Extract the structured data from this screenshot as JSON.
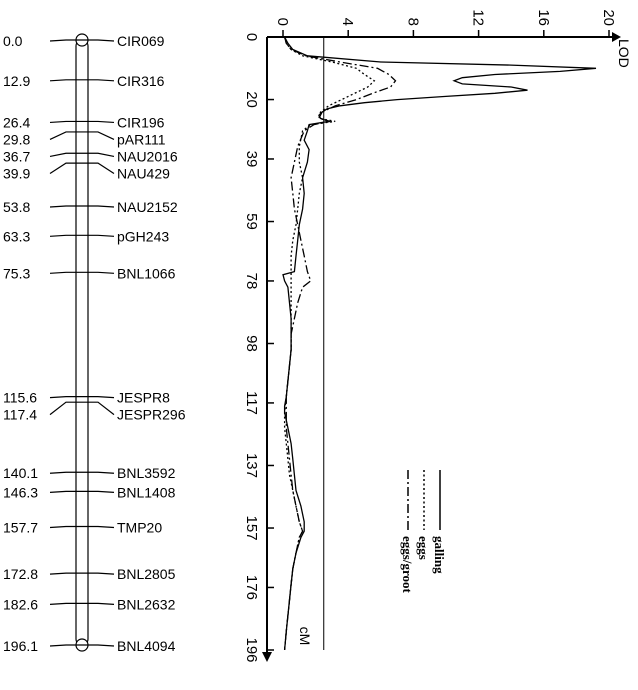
{
  "chart_data": [
    {
      "type": "linkage-map",
      "markers": [
        {
          "pos": 0.0,
          "pos_label": "0.0",
          "name": "CIR069"
        },
        {
          "pos": 12.9,
          "pos_label": "12.9",
          "name": "CIR316"
        },
        {
          "pos": 26.4,
          "pos_label": "26.4",
          "name": "CIR196"
        },
        {
          "pos": 29.8,
          "pos_label": "29.8",
          "name": "pAR111"
        },
        {
          "pos": 36.7,
          "pos_label": "36.7",
          "name": "NAU2016"
        },
        {
          "pos": 39.9,
          "pos_label": "39.9",
          "name": "NAU429"
        },
        {
          "pos": 53.8,
          "pos_label": "53.8",
          "name": "NAU2152"
        },
        {
          "pos": 63.3,
          "pos_label": "63.3",
          "name": "pGH243"
        },
        {
          "pos": 75.3,
          "pos_label": "75.3",
          "name": "BNL1066"
        },
        {
          "pos": 115.6,
          "pos_label": "115.6",
          "name": "JESPR8"
        },
        {
          "pos": 117.4,
          "pos_label": "117.4",
          "name": "JESPR296"
        },
        {
          "pos": 140.1,
          "pos_label": "140.1",
          "name": "BNL3592"
        },
        {
          "pos": 146.3,
          "pos_label": "146.3",
          "name": "BNL1408"
        },
        {
          "pos": 157.7,
          "pos_label": "157.7",
          "name": "TMP20"
        },
        {
          "pos": 172.8,
          "pos_label": "172.8",
          "name": "BNL2805"
        },
        {
          "pos": 182.6,
          "pos_label": "182.6",
          "name": "BNL2632"
        },
        {
          "pos": 196.1,
          "pos_label": "196.1",
          "name": "BNL4094"
        }
      ]
    },
    {
      "type": "line",
      "xlabel": "cM",
      "ylabel": "LOD",
      "x_ticks": [
        "0",
        "20",
        "39",
        "59",
        "78",
        "98",
        "117",
        "137",
        "157",
        "176",
        "196"
      ],
      "y_ticks": [
        "0",
        "4",
        "8",
        "12",
        "16",
        "20"
      ],
      "xlim": [
        0,
        196
      ],
      "ylim": [
        0,
        20
      ],
      "threshold": 2.5,
      "series": [
        {
          "name": "galling",
          "style": "solid",
          "x": [
            0,
            2,
            4,
            6,
            8,
            9,
            10,
            11,
            12,
            13,
            14,
            15,
            16,
            17,
            18,
            19,
            20,
            21,
            22,
            23,
            24,
            25,
            26,
            27,
            28,
            30,
            33,
            36,
            40,
            45,
            50,
            55,
            60,
            65,
            70,
            75,
            76,
            78,
            80,
            85,
            90,
            95,
            100,
            105,
            110,
            115,
            118,
            120,
            125,
            130,
            135,
            140,
            145,
            150,
            155,
            158,
            160,
            165,
            170,
            175,
            180,
            185,
            190,
            196
          ],
          "y": [
            0.1,
            0.3,
            0.6,
            1.5,
            6,
            14,
            19.2,
            17,
            13,
            11,
            10.5,
            11,
            14,
            15,
            13,
            10,
            7,
            5,
            3.5,
            2.7,
            2.4,
            2.2,
            2.3,
            2.8,
            1.6,
            1.5,
            1.3,
            1.6,
            1.5,
            1.2,
            1.3,
            1.2,
            1.0,
            0.9,
            0.8,
            0.7,
            0.0,
            0.1,
            0.3,
            0.4,
            0.5,
            0.5,
            0.5,
            0.4,
            0.3,
            0.2,
            0.1,
            0.1,
            0.3,
            0.5,
            0.6,
            0.7,
            0.8,
            1.1,
            1.3,
            1.3,
            1.1,
            0.8,
            0.6,
            0.5,
            0.4,
            0.3,
            0.2,
            0.1
          ]
        },
        {
          "name": "eggs",
          "style": "dotted",
          "x": [
            0,
            2,
            4,
            6,
            8,
            10,
            12,
            14,
            16,
            18,
            20,
            22,
            24,
            26,
            27,
            28,
            30,
            35,
            40,
            45,
            50,
            55,
            60,
            65,
            70,
            75,
            80,
            85,
            90,
            95,
            100,
            105,
            110,
            115,
            120,
            125,
            130,
            135,
            140,
            145,
            150,
            155,
            158,
            160,
            165,
            170,
            175,
            180,
            185,
            190,
            196
          ],
          "y": [
            0.1,
            0.2,
            0.5,
            1.2,
            3,
            4.5,
            5,
            5.6,
            5.2,
            4.4,
            3.6,
            2.8,
            2.3,
            2.2,
            3.2,
            1.7,
            1.2,
            1.0,
            1.0,
            1.2,
            1.0,
            0.9,
            0.8,
            0.6,
            0.5,
            0.5,
            0.5,
            0.5,
            0.5,
            0.5,
            0.5,
            0.4,
            0.3,
            0.2,
            0.1,
            0.1,
            0.2,
            0.3,
            0.4,
            0.6,
            0.8,
            1.0,
            1.2,
            1.0,
            0.8,
            0.6,
            0.5,
            0.4,
            0.3,
            0.2,
            0.1
          ]
        },
        {
          "name": "eggs/groot",
          "style": "dashdot",
          "x": [
            0,
            2,
            4,
            6,
            8,
            10,
            12,
            14,
            16,
            18,
            20,
            22,
            24,
            26,
            27,
            28,
            30,
            35,
            40,
            45,
            50,
            55,
            60,
            65,
            70,
            75,
            78,
            80,
            85,
            90,
            95,
            100,
            105,
            110,
            115,
            120,
            125,
            130,
            135,
            140,
            145,
            150,
            155,
            158,
            160,
            165,
            170,
            175,
            180,
            185,
            190,
            196
          ],
          "y": [
            0.1,
            0.2,
            0.5,
            1.4,
            3.5,
            5.8,
            6.5,
            6.9,
            6.6,
            5.5,
            4.5,
            3.2,
            2.4,
            2.2,
            2.9,
            1.9,
            1.3,
            0.9,
            0.7,
            0.5,
            0.6,
            0.7,
            0.9,
            1.1,
            1.3,
            1.5,
            1.7,
            1.2,
            0.9,
            0.7,
            0.5,
            0.5,
            0.4,
            0.3,
            0.2,
            0.2,
            0.2,
            0.3,
            0.4,
            0.5,
            0.6,
            0.8,
            1.0,
            1.2,
            1.0,
            0.8,
            0.6,
            0.5,
            0.4,
            0.3,
            0.2,
            0.1
          ]
        }
      ]
    }
  ]
}
